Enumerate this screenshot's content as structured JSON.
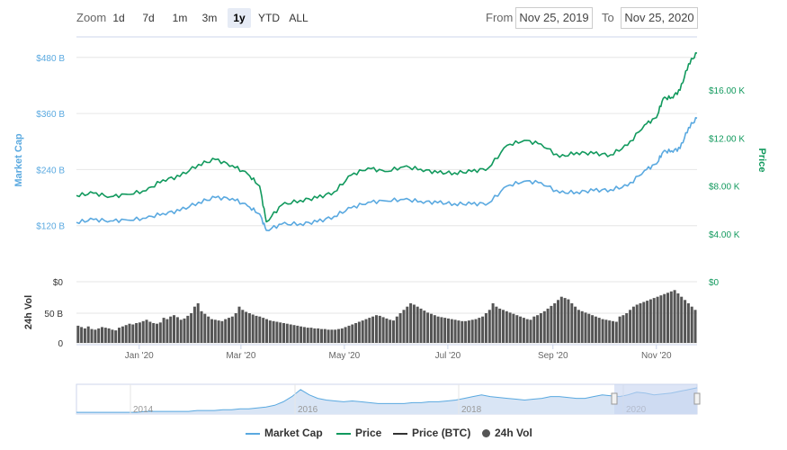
{
  "range_selector": {
    "zoom_label": "Zoom",
    "buttons": [
      "1d",
      "7d",
      "1m",
      "3m",
      "1y",
      "YTD",
      "ALL"
    ],
    "active": "1y",
    "from_label": "From",
    "from_value": "Nov 25, 2019",
    "to_label": "To",
    "to_value": "Nov 25, 2020"
  },
  "colors": {
    "market_cap": "#5aa9e0",
    "price": "#11995d",
    "price_btc": "#333333",
    "volume": "#555555",
    "navigator_fill": "#d9e5f5",
    "navigator_mask": "#c6d4f0"
  },
  "legend": [
    "Market Cap",
    "Price",
    "Price (BTC)",
    "24h Vol"
  ],
  "chart_data": [
    {
      "type": "line",
      "x_start": "2019-11-25",
      "x_end": "2020-11-25",
      "x_tick_labels": [
        "Jan '20",
        "Mar '20",
        "May '20",
        "Jul '20",
        "Sep '20",
        "Nov '20"
      ],
      "y_left": {
        "label": "Market Cap",
        "ticks": [
          "$120 B",
          "$240 B",
          "$360 B",
          "$480 B"
        ],
        "tick_values": [
          120,
          240,
          360,
          480
        ],
        "units": "B USD"
      },
      "y_right": {
        "label": "Price",
        "ticks": [
          "$4.00 K",
          "$8.00 K",
          "$12.00 K",
          "$16.00 K"
        ],
        "tick_values": [
          4,
          8,
          12,
          16
        ],
        "units": "K USD"
      },
      "series": [
        {
          "name": "Market Cap",
          "axis": "left",
          "x": [
            "2019-11-25",
            "2019-12-05",
            "2019-12-15",
            "2019-12-25",
            "2020-01-05",
            "2020-01-15",
            "2020-01-25",
            "2020-02-05",
            "2020-02-15",
            "2020-02-25",
            "2020-03-05",
            "2020-03-12",
            "2020-03-16",
            "2020-03-25",
            "2020-04-05",
            "2020-04-15",
            "2020-04-25",
            "2020-05-05",
            "2020-05-15",
            "2020-05-25",
            "2020-06-05",
            "2020-06-15",
            "2020-06-25",
            "2020-07-05",
            "2020-07-15",
            "2020-07-25",
            "2020-08-05",
            "2020-08-15",
            "2020-08-25",
            "2020-09-05",
            "2020-09-15",
            "2020-09-25",
            "2020-10-05",
            "2020-10-15",
            "2020-10-25",
            "2020-11-01",
            "2020-11-05",
            "2020-11-10",
            "2020-11-15",
            "2020-11-20",
            "2020-11-25"
          ],
          "values": [
            127,
            133,
            130,
            132,
            136,
            146,
            152,
            170,
            180,
            178,
            162,
            145,
            110,
            123,
            124,
            128,
            140,
            158,
            170,
            173,
            176,
            172,
            169,
            167,
            166,
            168,
            205,
            215,
            212,
            190,
            192,
            195,
            197,
            205,
            238,
            252,
            278,
            280,
            285,
            330,
            350
          ]
        },
        {
          "name": "Price",
          "axis": "right",
          "x": [
            "2019-11-25",
            "2019-12-05",
            "2019-12-15",
            "2019-12-25",
            "2020-01-05",
            "2020-01-15",
            "2020-01-25",
            "2020-02-05",
            "2020-02-15",
            "2020-02-25",
            "2020-03-05",
            "2020-03-12",
            "2020-03-16",
            "2020-03-25",
            "2020-04-05",
            "2020-04-15",
            "2020-04-25",
            "2020-05-05",
            "2020-05-15",
            "2020-05-25",
            "2020-06-05",
            "2020-06-15",
            "2020-06-25",
            "2020-07-05",
            "2020-07-15",
            "2020-07-25",
            "2020-08-05",
            "2020-08-15",
            "2020-08-25",
            "2020-09-05",
            "2020-09-15",
            "2020-09-25",
            "2020-10-05",
            "2020-10-15",
            "2020-10-25",
            "2020-11-01",
            "2020-11-05",
            "2020-11-10",
            "2020-11-15",
            "2020-11-20",
            "2020-11-25"
          ],
          "values": [
            7.2,
            7.4,
            7.1,
            7.3,
            7.6,
            8.5,
            8.8,
            9.8,
            10.2,
            9.7,
            9.0,
            8.0,
            5.0,
            6.4,
            6.8,
            7.0,
            7.5,
            8.9,
            9.5,
            9.2,
            9.6,
            9.4,
            9.1,
            9.1,
            9.2,
            9.5,
            11.4,
            11.8,
            11.5,
            10.4,
            10.8,
            10.7,
            10.6,
            11.4,
            13.1,
            13.7,
            15.3,
            15.4,
            16.0,
            18.2,
            19.1
          ]
        }
      ]
    },
    {
      "type": "bar",
      "y_label": "24h Vol",
      "y_ticks_left": [
        "0",
        "50 B",
        "$0"
      ],
      "y_ticks_right": [
        "$0"
      ],
      "series": [
        {
          "name": "24h Vol",
          "units": "B USD",
          "values": [
            26,
            24,
            22,
            25,
            21,
            20,
            22,
            24,
            23,
            22,
            20,
            19,
            23,
            25,
            27,
            29,
            28,
            30,
            31,
            33,
            35,
            32,
            30,
            29,
            31,
            38,
            36,
            40,
            42,
            39,
            35,
            37,
            41,
            45,
            55,
            60,
            48,
            44,
            40,
            36,
            35,
            34,
            33,
            36,
            38,
            40,
            45,
            55,
            50,
            47,
            45,
            43,
            41,
            40,
            38,
            36,
            34,
            33,
            32,
            31,
            30,
            29,
            28,
            27,
            26,
            25,
            24,
            23,
            23,
            22,
            22,
            21,
            21,
            20,
            20,
            20,
            21,
            22,
            24,
            26,
            28,
            30,
            32,
            34,
            36,
            38,
            40,
            42,
            41,
            39,
            37,
            35,
            34,
            40,
            45,
            50,
            55,
            60,
            58,
            55,
            52,
            49,
            46,
            44,
            42,
            40,
            39,
            38,
            37,
            36,
            35,
            34,
            33,
            33,
            34,
            35,
            36,
            38,
            40,
            45,
            50,
            60,
            55,
            52,
            50,
            48,
            46,
            44,
            42,
            40,
            38,
            36,
            35,
            40,
            42,
            45,
            48,
            52,
            56,
            60,
            65,
            70,
            68,
            66,
            60,
            55,
            50,
            48,
            46,
            44,
            42,
            40,
            38,
            36,
            35,
            34,
            33,
            32,
            40,
            42,
            45,
            50,
            55,
            58,
            60,
            62,
            64,
            66,
            68,
            70,
            72,
            74,
            76,
            78,
            80,
            75,
            70,
            65,
            60,
            55,
            50
          ]
        }
      ]
    },
    {
      "type": "area",
      "role": "navigator",
      "x_tick_labels": [
        "2014",
        "2016",
        "2018",
        "2020"
      ],
      "values": [
        2,
        2,
        2,
        2,
        2,
        2,
        2,
        2,
        3,
        3,
        3,
        3,
        3,
        3,
        4,
        4,
        4,
        5,
        5,
        6,
        6,
        7,
        8,
        10,
        14,
        20,
        28,
        22,
        18,
        16,
        15,
        14,
        15,
        14,
        13,
        12,
        12,
        12,
        12,
        13,
        13,
        14,
        14,
        15,
        16,
        18,
        20,
        22,
        20,
        19,
        18,
        17,
        16,
        17,
        18,
        20,
        20,
        19,
        18,
        18,
        20,
        22,
        21,
        20,
        22,
        25,
        24,
        22,
        23,
        24,
        26,
        28,
        30
      ]
    }
  ]
}
